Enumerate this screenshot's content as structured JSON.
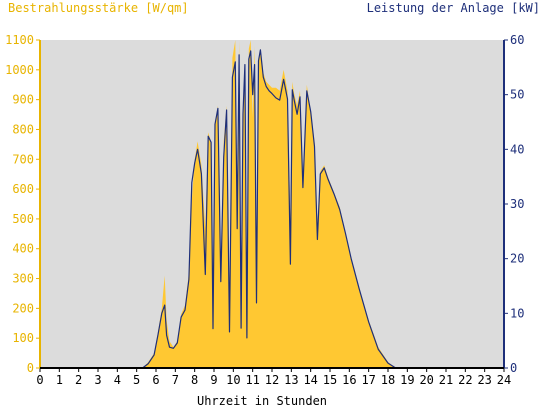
{
  "chart_data": {
    "type": "area",
    "left_axis_title": "Bestrahlungsstärke [W/qm]",
    "right_axis_title": "Leistung der Anlage [kW]",
    "xlabel": "Uhrzeit in Stunden",
    "x_ticks": [
      "0",
      "1",
      "2",
      "3",
      "4",
      "5",
      "6",
      "7",
      "8",
      "9",
      "10",
      "11",
      "12",
      "13",
      "14",
      "15",
      "16",
      "17",
      "18",
      "19",
      "20",
      "21",
      "22",
      "23",
      "24"
    ],
    "y_left_ticks": [
      "0",
      "100",
      "200",
      "300",
      "400",
      "500",
      "600",
      "700",
      "800",
      "900",
      "1000",
      "1100"
    ],
    "y_right_ticks": [
      "0",
      "10",
      "20",
      "30",
      "40",
      "50",
      "60"
    ],
    "xlim": [
      0,
      24
    ],
    "ylim_left": [
      0,
      1100
    ],
    "ylim_right": [
      0,
      60
    ],
    "grid": false,
    "colors": {
      "plot_bg": "#dcdcdc",
      "irradiance": "#ffc832",
      "power": "#1e2f7a",
      "left_axis_text": "#e8b400",
      "right_axis_text": "#1e2f7a"
    },
    "series": [
      {
        "name": "Bestrahlungsstärke [W/qm]",
        "axis": "left",
        "style": "area",
        "x": [
          0,
          5.3,
          5.6,
          5.9,
          6.1,
          6.3,
          6.45,
          6.55,
          6.7,
          6.9,
          7.1,
          7.3,
          7.5,
          7.7,
          7.85,
          8.0,
          8.15,
          8.35,
          8.55,
          8.7,
          8.85,
          8.95,
          9.05,
          9.2,
          9.35,
          9.5,
          9.65,
          9.8,
          9.95,
          10.1,
          10.2,
          10.3,
          10.4,
          10.5,
          10.6,
          10.7,
          10.8,
          10.9,
          11.0,
          11.1,
          11.2,
          11.3,
          11.4,
          11.55,
          11.7,
          11.85,
          12.0,
          12.2,
          12.4,
          12.6,
          12.8,
          12.95,
          13.05,
          13.15,
          13.3,
          13.45,
          13.6,
          13.8,
          14.0,
          14.2,
          14.35,
          14.5,
          14.7,
          14.9,
          15.2,
          15.5,
          15.8,
          16.1,
          16.5,
          17.0,
          17.5,
          18.0,
          18.4,
          18.7,
          19.0,
          19.3,
          19.6,
          19.9,
          20.2,
          24
        ],
        "y": [
          0,
          0,
          20,
          50,
          120,
          200,
          310,
          160,
          90,
          70,
          90,
          180,
          210,
          320,
          560,
          700,
          760,
          680,
          470,
          790,
          760,
          300,
          820,
          880,
          320,
          760,
          880,
          240,
          1040,
          1100,
          500,
          1100,
          230,
          780,
          1020,
          160,
          1070,
          1100,
          840,
          1080,
          200,
          1020,
          1070,
          990,
          960,
          950,
          940,
          940,
          930,
          1000,
          930,
          500,
          960,
          920,
          880,
          930,
          640,
          950,
          860,
          760,
          480,
          660,
          680,
          640,
          590,
          540,
          450,
          360,
          270,
          160,
          70,
          20,
          0,
          0,
          0,
          0,
          0,
          0,
          0,
          0
        ]
      },
      {
        "name": "Leistung der Anlage [kW]",
        "axis": "right",
        "style": "line",
        "x": [
          0,
          5.3,
          5.6,
          5.9,
          6.1,
          6.3,
          6.45,
          6.55,
          6.7,
          6.9,
          7.1,
          7.3,
          7.5,
          7.7,
          7.85,
          8.0,
          8.15,
          8.35,
          8.55,
          8.7,
          8.85,
          8.95,
          9.05,
          9.2,
          9.35,
          9.5,
          9.65,
          9.8,
          9.95,
          10.1,
          10.2,
          10.3,
          10.4,
          10.5,
          10.6,
          10.7,
          10.8,
          10.9,
          11.0,
          11.1,
          11.2,
          11.3,
          11.4,
          11.55,
          11.7,
          11.85,
          12.0,
          12.2,
          12.4,
          12.6,
          12.8,
          12.95,
          13.05,
          13.15,
          13.3,
          13.45,
          13.6,
          13.8,
          14.0,
          14.2,
          14.35,
          14.5,
          14.7,
          14.9,
          15.2,
          15.5,
          15.8,
          16.1,
          16.5,
          17.0,
          17.5,
          18.0,
          18.4,
          18.7,
          19.0,
          19.3,
          19.6,
          19.9,
          20.2,
          24
        ],
        "y": [
          0,
          0,
          0.8,
          2.4,
          6.0,
          10.0,
          11.5,
          6.0,
          3.8,
          3.6,
          4.6,
          9.3,
          10.6,
          16.2,
          33.9,
          37.5,
          40.0,
          35.5,
          17.1,
          42.4,
          41.3,
          7.2,
          44.6,
          47.5,
          15.8,
          38.6,
          47.2,
          6.6,
          53.2,
          56.0,
          25.5,
          57.3,
          7.3,
          46.5,
          55.5,
          5.5,
          56.5,
          58.0,
          50.0,
          55.5,
          11.9,
          56.2,
          58.2,
          53.2,
          51.5,
          50.7,
          50.2,
          49.4,
          49.0,
          52.8,
          49.2,
          19.0,
          50.9,
          49.0,
          46.4,
          49.6,
          33.0,
          50.7,
          46.9,
          40.5,
          23.5,
          35.5,
          36.6,
          34.5,
          31.9,
          29.0,
          24.6,
          19.9,
          14.6,
          8.4,
          3.4,
          0.9,
          0,
          0,
          0,
          0,
          0,
          0,
          0,
          0
        ]
      }
    ]
  }
}
